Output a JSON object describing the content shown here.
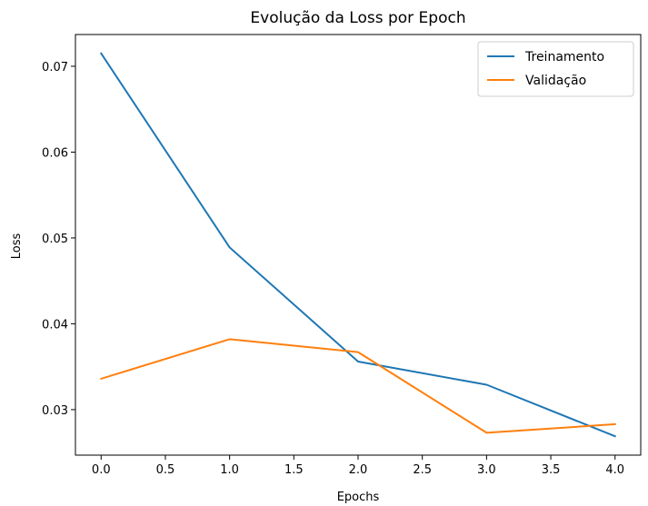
{
  "chart_data": {
    "type": "line",
    "title": "Evolução da Loss por Epoch",
    "xlabel": "Epochs",
    "ylabel": "Loss",
    "x": [
      0,
      1,
      2,
      3,
      4
    ],
    "series": [
      {
        "name": "Treinamento",
        "color": "#1f77b4",
        "values": [
          0.0715,
          0.0489,
          0.0356,
          0.0329,
          0.0269
        ]
      },
      {
        "name": "Validação",
        "color": "#ff7f0e",
        "values": [
          0.0336,
          0.0382,
          0.0367,
          0.0273,
          0.0283
        ]
      }
    ],
    "xlim": [
      -0.2,
      4.2
    ],
    "ylim": [
      0.0247,
      0.0737
    ],
    "xticks": [
      0.0,
      0.5,
      1.0,
      1.5,
      2.0,
      2.5,
      3.0,
      3.5,
      4.0
    ],
    "xtick_labels": [
      "0.0",
      "0.5",
      "1.0",
      "1.5",
      "2.0",
      "2.5",
      "3.0",
      "3.5",
      "4.0"
    ],
    "yticks": [
      0.03,
      0.04,
      0.05,
      0.06,
      0.07
    ],
    "ytick_labels": [
      "0.03",
      "0.04",
      "0.05",
      "0.06",
      "0.07"
    ],
    "grid": false,
    "legend_position": "upper-right"
  }
}
